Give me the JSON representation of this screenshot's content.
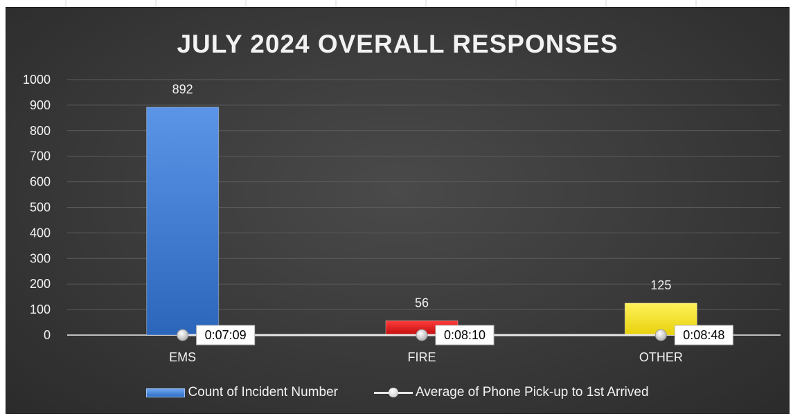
{
  "chart_data": {
    "type": "bar",
    "title": "JULY 2024 OVERALL RESPONSES",
    "categories": [
      "EMS",
      "FIRE",
      "OTHER"
    ],
    "ylim": [
      0,
      1000
    ],
    "yticks": [
      "0",
      "100",
      "200",
      "300",
      "400",
      "500",
      "600",
      "700",
      "800",
      "900",
      "1000"
    ],
    "grid": true,
    "legend_position": "bottom",
    "series": [
      {
        "name": "Count of Incident Number",
        "kind": "bar",
        "values": [
          892,
          56,
          125
        ],
        "labels": [
          "892",
          "56",
          "125"
        ],
        "colors": [
          "#3b7bd4",
          "#e8191b",
          "#f5e41a"
        ]
      },
      {
        "name": "Average of Phone Pick-up to 1st Arrived",
        "kind": "line",
        "values": [
          "0:07:09",
          "0:08:10",
          "0:08:48"
        ],
        "color": "#e8e8e8"
      }
    ]
  }
}
